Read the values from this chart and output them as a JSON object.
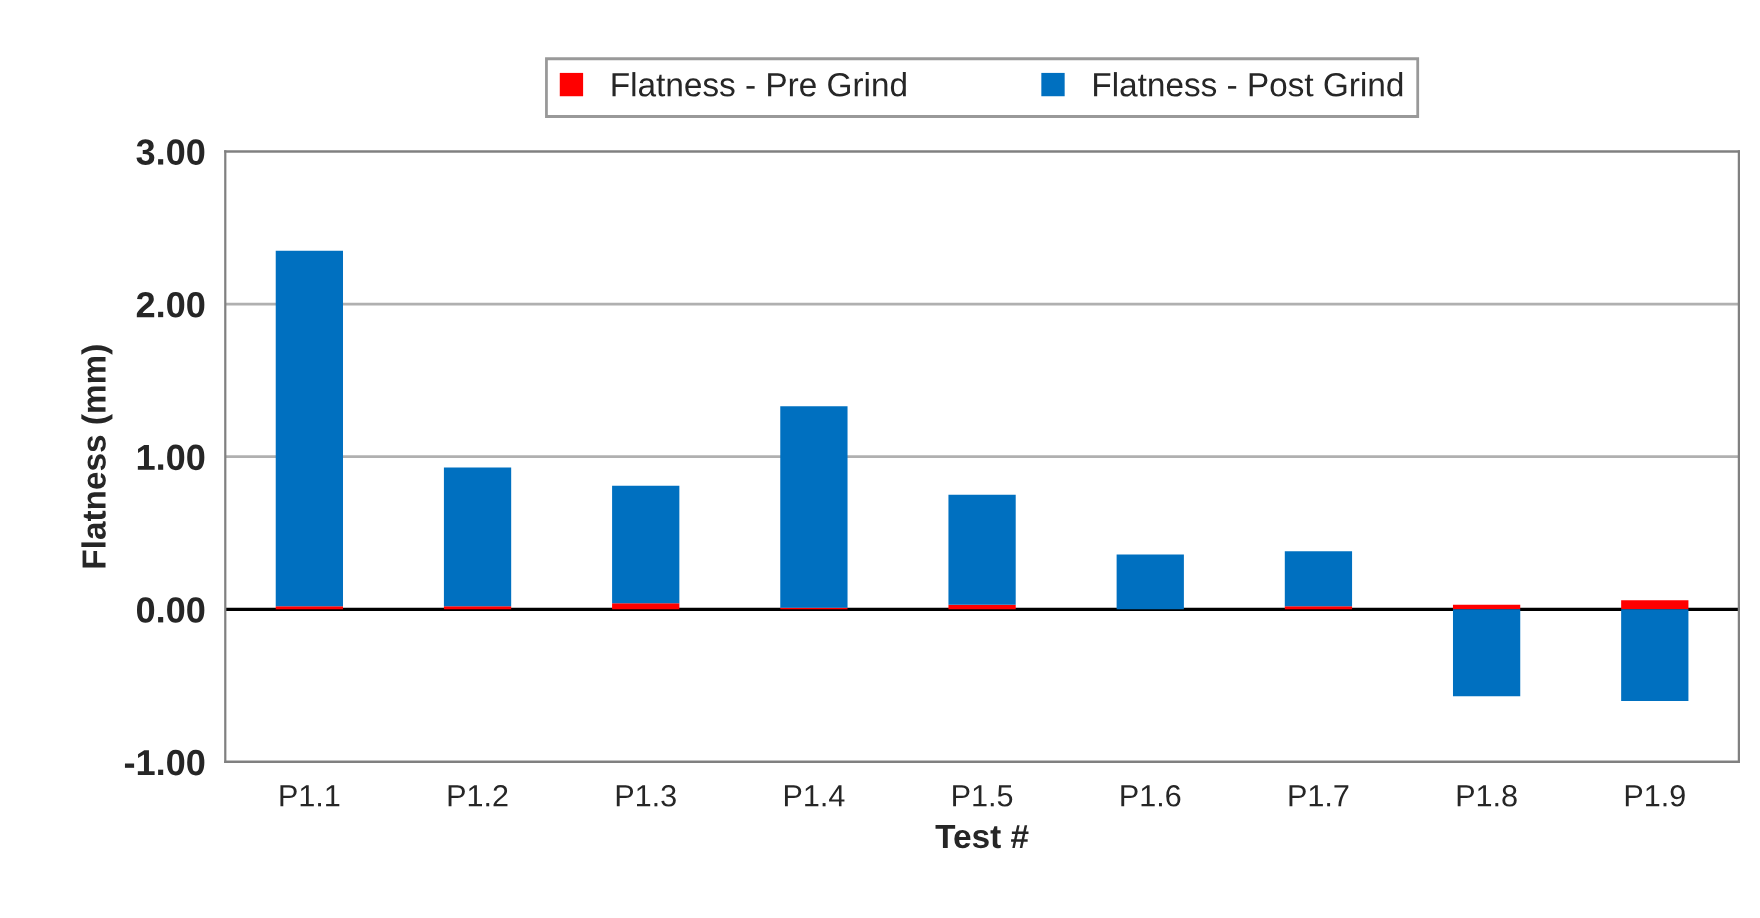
{
  "chart_data": {
    "type": "bar",
    "stacked": true,
    "xlabel": "Test #",
    "ylabel": "Flatness (mm)",
    "categories": [
      "P1.1",
      "P1.2",
      "P1.3",
      "P1.4",
      "P1.5",
      "P1.6",
      "P1.7",
      "P1.8",
      "P1.9"
    ],
    "series": [
      {
        "name": "Flatness - Pre Grind",
        "color": "#ff0000",
        "values": [
          0.02,
          0.02,
          0.04,
          0.01,
          0.03,
          0.0,
          0.02,
          0.03,
          0.06
        ]
      },
      {
        "name": "Flatness - Post Grind",
        "color": "#0070c0",
        "values": [
          2.33,
          0.91,
          0.77,
          1.32,
          0.72,
          0.36,
          0.36,
          -0.57,
          -0.6
        ]
      }
    ],
    "ylim": [
      -1,
      3
    ],
    "yticks": [
      {
        "value": -1,
        "label": "-1.00"
      },
      {
        "value": 0,
        "label": "0.00"
      },
      {
        "value": 1,
        "label": "1.00"
      },
      {
        "value": 2,
        "label": "2.00"
      },
      {
        "value": 3,
        "label": "3.00"
      }
    ],
    "ref_lines": [
      {
        "axis": "y",
        "value": 0,
        "color": "#000000"
      }
    ],
    "grid": "y",
    "legend": "top"
  }
}
